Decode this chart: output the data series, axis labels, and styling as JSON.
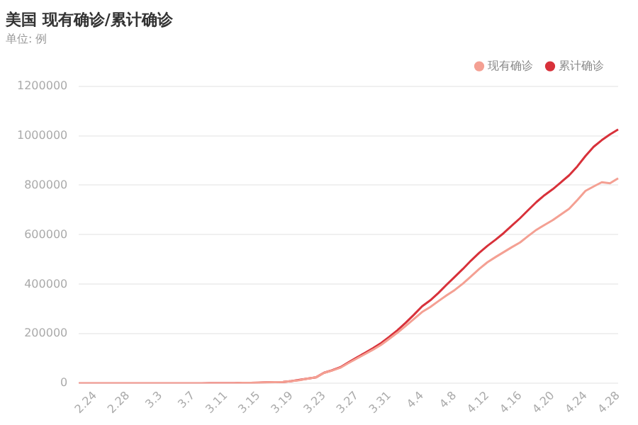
{
  "chart_data": {
    "type": "line",
    "title": "美国 现有确诊/累计确诊",
    "subtitle": "单位: 例",
    "categories": [
      null,
      null,
      "2.24",
      null,
      null,
      null,
      "2.28",
      null,
      null,
      null,
      "3.3",
      null,
      null,
      null,
      "3.7",
      null,
      null,
      null,
      "3.11",
      null,
      null,
      null,
      "3.15",
      null,
      null,
      null,
      "3.19",
      null,
      null,
      null,
      "3.23",
      null,
      null,
      null,
      "3.27",
      null,
      null,
      null,
      "3.31",
      null,
      null,
      null,
      "4.4",
      null,
      null,
      null,
      "4.8",
      null,
      null,
      null,
      "4.12",
      null,
      null,
      null,
      "4.16",
      null,
      null,
      null,
      "4.20",
      null,
      null,
      null,
      "4.24",
      null,
      null,
      null,
      "4.28"
    ],
    "series": [
      {
        "name": "现有确诊",
        "color": "#f4a093",
        "values": [
          0,
          0,
          0,
          0,
          0,
          0,
          0,
          0,
          0,
          0,
          0,
          0,
          0,
          0,
          0,
          0,
          0,
          1000,
          1000,
          1000,
          2000,
          2000,
          3000,
          4000,
          5000,
          6000,
          9000,
          13000,
          19000,
          24000,
          42000,
          52000,
          63000,
          82000,
          100000,
          118000,
          136000,
          156000,
          180000,
          205000,
          232000,
          260000,
          288000,
          308000,
          332000,
          355000,
          377000,
          403000,
          432000,
          462000,
          489000,
          510000,
          530000,
          550000,
          569000,
          595000,
          620000,
          640000,
          659000,
          682000,
          705000,
          740000,
          777000,
          795000,
          812000,
          808000,
          828000
        ]
      },
      {
        "name": "累计确诊",
        "color": "#d8313a",
        "values": [
          0,
          0,
          0,
          0,
          0,
          0,
          0,
          0,
          0,
          0,
          0,
          0,
          0,
          0,
          0,
          0,
          1000,
          1000,
          1000,
          1000,
          2000,
          2000,
          3000,
          4000,
          5000,
          6000,
          9000,
          14000,
          19000,
          24000,
          43000,
          53000,
          65000,
          85000,
          104000,
          123000,
          142000,
          163000,
          188000,
          215000,
          245000,
          277000,
          311000,
          335000,
          365000,
          398000,
          430000,
          462000,
          496000,
          527000,
          555000,
          580000,
          607000,
          637000,
          667000,
          700000,
          732000,
          760000,
          784000,
          812000,
          840000,
          876000,
          918000,
          955000,
          982000,
          1005000,
          1025000
        ]
      }
    ],
    "ylim": [
      0,
      1200000
    ],
    "yticks": [
      0,
      200000,
      400000,
      600000,
      800000,
      1000000,
      1200000
    ],
    "grid": "y",
    "legend": "top right",
    "marker": "none",
    "line_style": "solid"
  }
}
